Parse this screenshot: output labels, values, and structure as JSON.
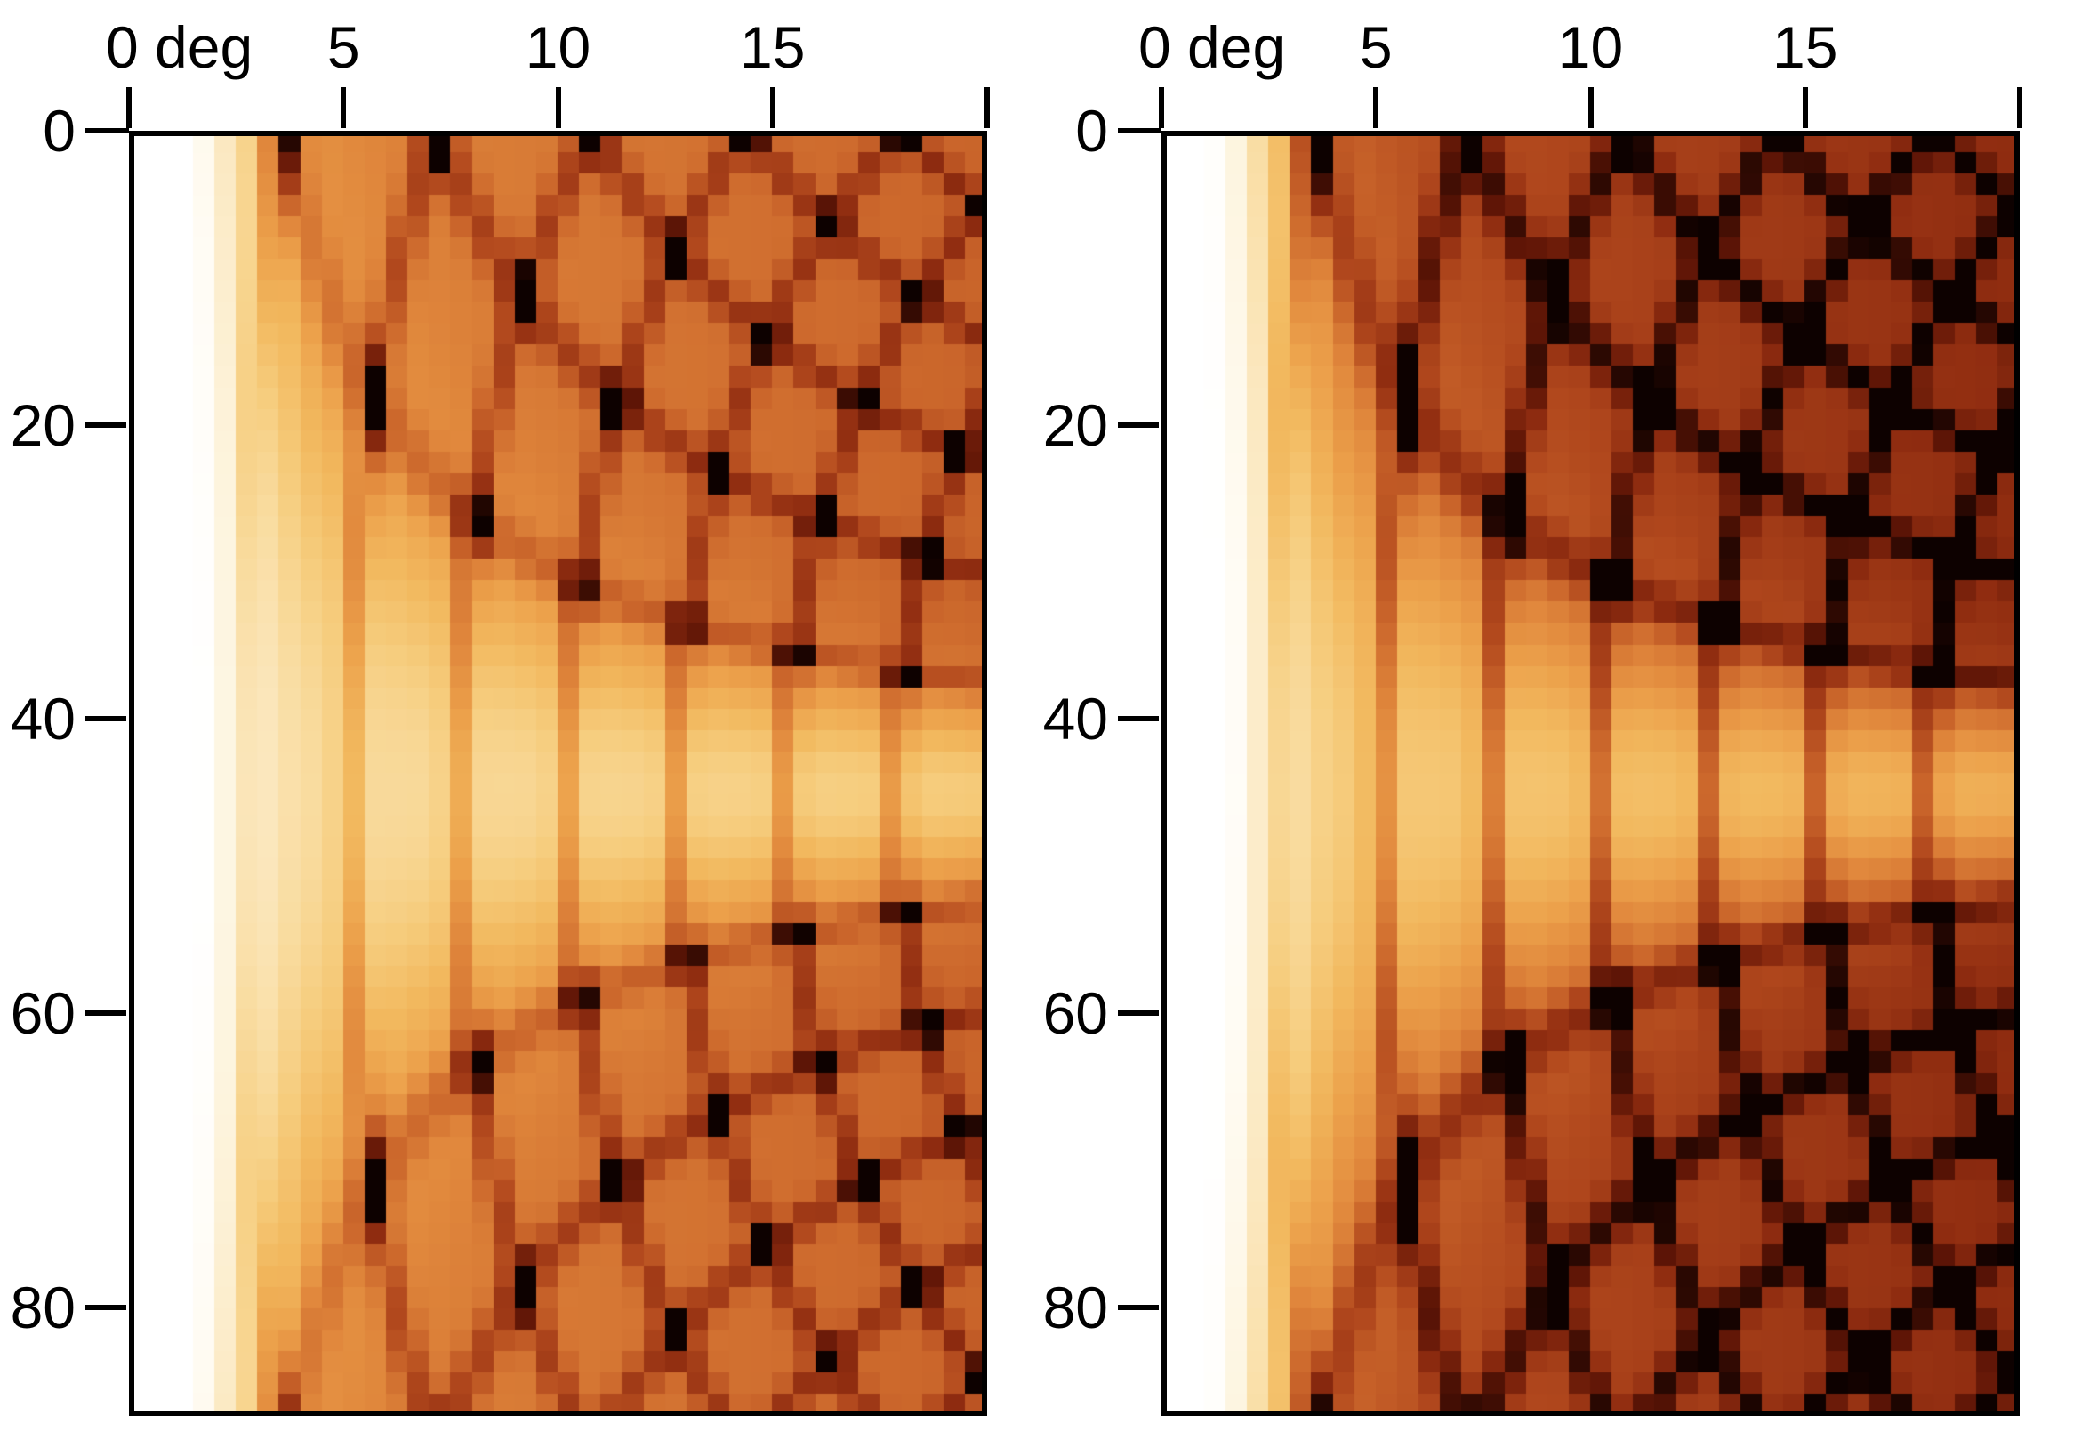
{
  "figure": {
    "background": "#ffffff",
    "axis_color": "#000000",
    "tick_label_color": "#000000"
  },
  "chart_data": {
    "type": "heatmap",
    "layout": "two side-by-side panels, same axes",
    "x_axis": {
      "side": "top",
      "unit": "deg",
      "range": [
        0,
        20
      ],
      "ticks": [
        0,
        5,
        10,
        15,
        20
      ],
      "tick_labels": [
        "0 deg",
        "5",
        "10",
        "15",
        ""
      ]
    },
    "y_axis": {
      "side": "left",
      "range": [
        0,
        87.4
      ],
      "direction": "down",
      "ticks": [
        0,
        20,
        40,
        60,
        80
      ],
      "tick_labels": [
        "0",
        "20",
        "40",
        "60",
        "80"
      ]
    },
    "grid": {
      "ncols": 40,
      "nrows": 60,
      "cell_deg_x": 0.5
    },
    "colormap": {
      "name": "white-yellow-orange-brown-black",
      "stops": [
        {
          "t": 0.0,
          "c": "#ffffff"
        },
        {
          "t": 0.05,
          "c": "#fffcf5"
        },
        {
          "t": 0.12,
          "c": "#fdf4dd"
        },
        {
          "t": 0.2,
          "c": "#fbe8c0"
        },
        {
          "t": 0.28,
          "c": "#f9dca0"
        },
        {
          "t": 0.36,
          "c": "#f6cd7e"
        },
        {
          "t": 0.44,
          "c": "#f2b95f"
        },
        {
          "t": 0.52,
          "c": "#eca14b"
        },
        {
          "t": 0.6,
          "c": "#e0873c"
        },
        {
          "t": 0.68,
          "c": "#cc682c"
        },
        {
          "t": 0.76,
          "c": "#b1481d"
        },
        {
          "t": 0.84,
          "c": "#8f2c10"
        },
        {
          "t": 0.92,
          "c": "#5e1506"
        },
        {
          "t": 1.0,
          "c": "#0d0100"
        }
      ]
    },
    "pattern_model": {
      "description": "Angular channeling-type map: white fade at 0 deg, bright planar channel band centered at y=45 with vertical stripe resonances every 2.55 deg, and two crossing families of dark lines x*|sin(y-45)|=k*delta and x*sin(y+45)=k*delta forming a diamond lattice with near-black spots at line crossings; pattern mirror-symmetric about y=45.",
      "delta_deg": 2.55,
      "line_width_deg": 0.3,
      "band_center_deg": 45,
      "band_sigma_deg": 2.1,
      "left_fade_deg": [
        0.2,
        2.6
      ],
      "base_ramp_deg": [
        0.4,
        4.4
      ],
      "amp_ramp_deg": [
        1.0,
        6.0
      ],
      "families": [
        "x*abs(sin(phi-45)) = k*delta (suppressed inside band)",
        "x*sin(phi+45) = k*delta (visible as stripes inside band)"
      ]
    },
    "panels": [
      {
        "name": "left",
        "model": {
          "base0": 0.22,
          "base_ramp": 0.36,
          "base_slope": 0.11,
          "amp": 0.16,
          "cross": 0.42,
          "band_reduction": 0.32
        }
      },
      {
        "name": "right",
        "model": {
          "base0": 0.3,
          "base_ramp": 0.4,
          "base_slope": 0.14,
          "amp": 0.2,
          "cross": 0.45,
          "band_reduction": 0.36
        }
      }
    ]
  }
}
